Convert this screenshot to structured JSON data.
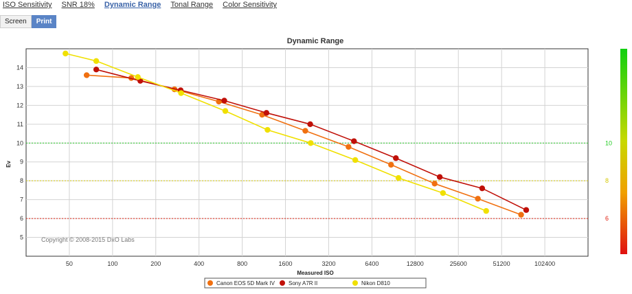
{
  "tabs": [
    {
      "label": "ISO Sensitivity",
      "active": false
    },
    {
      "label": "SNR 18%",
      "active": false
    },
    {
      "label": "Dynamic Range",
      "active": true
    },
    {
      "label": "Tonal Range",
      "active": false
    },
    {
      "label": "Color Sensitivity",
      "active": false
    }
  ],
  "view_toggle": {
    "screen": "Screen",
    "print": "Print",
    "selected": "Print"
  },
  "colors": {
    "canon": "#f07010",
    "sony": "#c01008",
    "nikon": "#f0e000"
  },
  "chart_data": {
    "type": "line",
    "title": "Dynamic Range",
    "xlabel": "Measured ISO",
    "ylabel": "Ev",
    "x_scale": "log2",
    "x_ticks": [
      "50",
      "100",
      "200",
      "400",
      "800",
      "1600",
      "3200",
      "6400",
      "12800",
      "25600",
      "51200",
      "102400"
    ],
    "y_ticks": [
      "5",
      "6",
      "7",
      "8",
      "9",
      "10",
      "11",
      "12",
      "13",
      "14"
    ],
    "xlim": [
      25,
      204800
    ],
    "ylim": [
      4,
      15
    ],
    "grid": true,
    "copyright": "Copyright © 2008-2015 DxO Labs",
    "reference_lines": [
      {
        "value": 10,
        "label": "10",
        "color": "#22cc22"
      },
      {
        "value": 8,
        "label": "8",
        "color": "#d4c800"
      },
      {
        "value": 6,
        "label": "6",
        "color": "#e02010"
      }
    ],
    "legend_position": "bottom",
    "series": [
      {
        "name": "Canon EOS 5D Mark IV",
        "color": "#f07010",
        "x": [
          66,
          135,
          270,
          550,
          1100,
          2200,
          4400,
          8700,
          17500,
          35000,
          70000
        ],
        "y": [
          13.6,
          13.45,
          12.85,
          12.2,
          11.5,
          10.65,
          9.8,
          8.85,
          7.85,
          7.05,
          6.2
        ]
      },
      {
        "name": "Sony A7R II",
        "color": "#c01008",
        "x": [
          77,
          156,
          298,
          600,
          1180,
          2380,
          4800,
          9400,
          19000,
          37500,
          76000
        ],
        "y": [
          13.9,
          13.3,
          12.8,
          12.25,
          11.6,
          11.0,
          10.1,
          9.2,
          8.2,
          7.6,
          6.45
        ]
      },
      {
        "name": "Nikon D810",
        "color": "#f0e000",
        "x": [
          47,
          77,
          150,
          300,
          610,
          1200,
          2400,
          4900,
          9800,
          20000,
          40000
        ],
        "y": [
          14.75,
          14.35,
          13.5,
          12.65,
          11.7,
          10.7,
          10.0,
          9.1,
          8.15,
          7.35,
          6.4
        ]
      }
    ]
  }
}
